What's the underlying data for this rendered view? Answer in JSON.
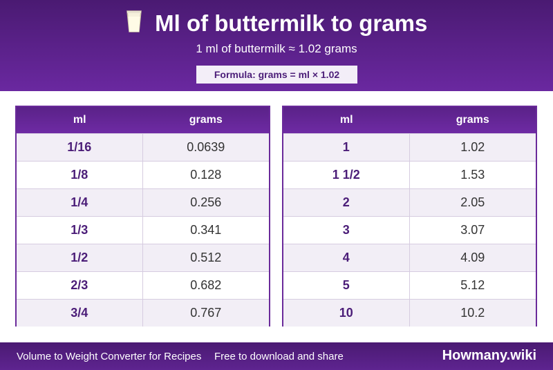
{
  "header": {
    "title": "Ml of buttermilk to grams",
    "subtitle": "1 ml of buttermilk ≈ 1.02 grams",
    "formula": "Formula: grams = ml × 1.02",
    "icon": "glass-of-milk-icon"
  },
  "table_left": {
    "col_ml": "ml",
    "col_grams": "grams",
    "rows": [
      {
        "ml": "1/16",
        "grams": "0.0639"
      },
      {
        "ml": "1/8",
        "grams": "0.128"
      },
      {
        "ml": "1/4",
        "grams": "0.256"
      },
      {
        "ml": "1/3",
        "grams": "0.341"
      },
      {
        "ml": "1/2",
        "grams": "0.512"
      },
      {
        "ml": "2/3",
        "grams": "0.682"
      },
      {
        "ml": "3/4",
        "grams": "0.767"
      }
    ]
  },
  "table_right": {
    "col_ml": "ml",
    "col_grams": "grams",
    "rows": [
      {
        "ml": "1",
        "grams": "1.02"
      },
      {
        "ml": "1 1/2",
        "grams": "1.53"
      },
      {
        "ml": "2",
        "grams": "2.05"
      },
      {
        "ml": "3",
        "grams": "3.07"
      },
      {
        "ml": "4",
        "grams": "4.09"
      },
      {
        "ml": "5",
        "grams": "5.12"
      },
      {
        "ml": "10",
        "grams": "10.2"
      }
    ]
  },
  "footer": {
    "left_text": "Volume to Weight Converter for Recipes",
    "middle_text": "Free to download and share",
    "brand": "Howmany.wiki"
  },
  "colors": {
    "accent": "#5a2288",
    "text_accent": "#4b1d78"
  }
}
